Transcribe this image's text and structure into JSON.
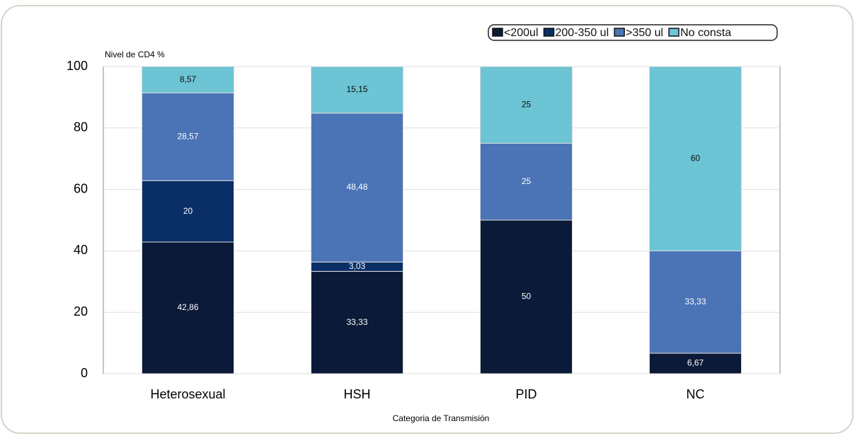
{
  "chart_data": {
    "type": "stacked-bar",
    "y_label": "Nivel de CD4 %",
    "x_label": "Categoria de Transmisión",
    "categories": [
      "Heterosexual",
      "HSH",
      "PID",
      "NC"
    ],
    "series": [
      {
        "name": "<200ul",
        "color": "#0b1a38",
        "values": [
          42.86,
          33.33,
          50,
          6.67
        ],
        "value_labels": [
          "42,86",
          "33,33",
          "50",
          "6,67"
        ]
      },
      {
        "name": "200-350 ul",
        "color": "#0a2e66",
        "values": [
          20,
          3.03,
          null,
          null
        ],
        "value_labels": [
          "20",
          "3,03",
          null,
          null
        ]
      },
      {
        "name": ">350 ul",
        "color": "#4a74b6",
        "values": [
          28.57,
          48.48,
          25,
          33.33
        ],
        "value_labels": [
          "28,57",
          "48,48",
          "25",
          "33,33"
        ]
      },
      {
        "name": "No consta",
        "color": "#6cc4d4",
        "values": [
          8.57,
          15.15,
          25,
          60
        ],
        "value_labels": [
          "8,57",
          "15,15",
          "25",
          "60"
        ]
      }
    ],
    "ylim": [
      0,
      100
    ],
    "yticks": [
      0,
      20,
      40,
      60,
      80,
      100
    ],
    "grid": true
  }
}
